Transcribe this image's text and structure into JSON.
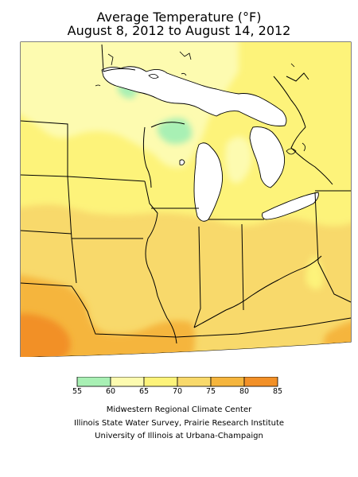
{
  "title": {
    "line1": "Average Temperature (°F)",
    "line2": "August 8, 2012 to August 14, 2012"
  },
  "legend": {
    "ticks": [
      "55",
      "60",
      "65",
      "70",
      "75",
      "80",
      "85"
    ],
    "colors": [
      "#a8f0b4",
      "#fdfbb0",
      "#fdf37a",
      "#f8d96b",
      "#f5b53d",
      "#f29027"
    ]
  },
  "map": {
    "units": "°F",
    "fill_levels": {
      "55-60": "#a8f0b4",
      "60-65": "#fdfbb0",
      "65-70": "#fdf37a",
      "70-75": "#f8d96b",
      "75-80": "#f5b53d",
      "80-85": "#f29027"
    }
  },
  "credits": {
    "line1": "Midwestern Regional Climate Center",
    "line2": "Illinois State Water Survey, Prairie Research Institute",
    "line3": "University of Illinois at Urbana-Champaign"
  }
}
